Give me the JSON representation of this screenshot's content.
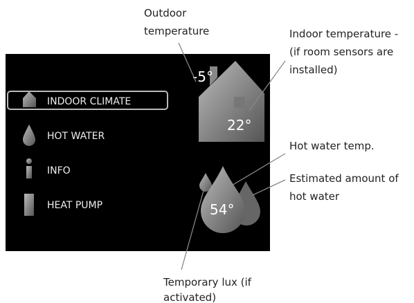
{
  "menu": [
    "INDOOR CLIMATE",
    "HOT WATER",
    "INFO",
    "HEAT PUMP"
  ],
  "display": {
    "outdoor": "-5°",
    "indoor": "22°",
    "hot_water": "54°"
  },
  "annotations": {
    "outdoor": [
      "Outdoor",
      "temperature"
    ],
    "indoor": [
      "Indoor temperature -",
      "(if room sensors are",
      "installed)"
    ],
    "hot_water_temp": [
      "Hot water temp."
    ],
    "amount": [
      "Estimated amount of",
      "hot water"
    ],
    "lux": [
      "Temporary lux  (if",
      "activated)"
    ]
  }
}
